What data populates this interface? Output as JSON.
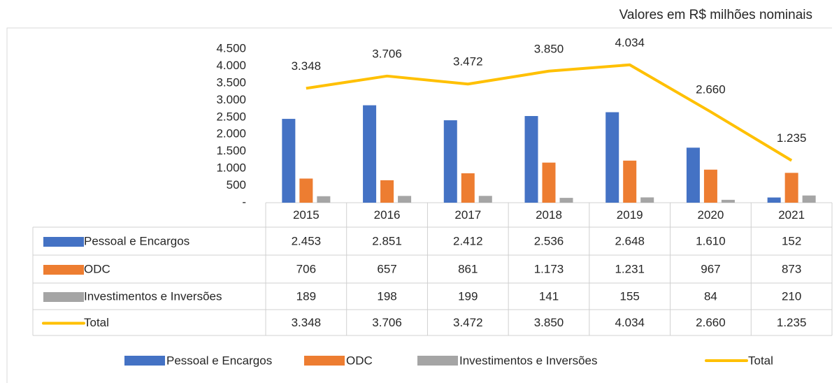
{
  "chart_data": {
    "type": "bar",
    "subtitle": "Valores em R$ milhões nominais",
    "categories": [
      "2015",
      "2016",
      "2017",
      "2018",
      "2019",
      "2020",
      "2021"
    ],
    "series": [
      {
        "name": "Pessoal e Encargos",
        "color": "#4472c4",
        "type": "bar",
        "values": [
          2453,
          2851,
          2412,
          2536,
          2648,
          1610,
          152
        ],
        "value_labels": [
          "2.453",
          "2.851",
          "2.412",
          "2.536",
          "2.648",
          "1.610",
          "152"
        ]
      },
      {
        "name": "ODC",
        "color": "#ed7d31",
        "type": "bar",
        "values": [
          706,
          657,
          861,
          1173,
          1231,
          967,
          873
        ],
        "value_labels": [
          "706",
          "657",
          "861",
          "1.173",
          "1.231",
          "967",
          "873"
        ]
      },
      {
        "name": "Investimentos e Inversões",
        "color": "#a5a5a5",
        "type": "bar",
        "values": [
          189,
          198,
          199,
          141,
          155,
          84,
          210
        ],
        "value_labels": [
          "189",
          "198",
          "199",
          "141",
          "155",
          "84",
          "210"
        ]
      },
      {
        "name": "Total",
        "color": "#ffc000",
        "type": "line",
        "values": [
          3348,
          3706,
          3472,
          3850,
          4034,
          2660,
          1235
        ],
        "value_labels": [
          "3.348",
          "3.706",
          "3.472",
          "3.850",
          "4.034",
          "2.660",
          "1.235"
        ]
      }
    ],
    "ylim": [
      0,
      4500
    ],
    "yticks": [
      {
        "value": 0,
        "label": "-"
      },
      500,
      {
        "value": 1000,
        "label": "1.000"
      },
      {
        "value": 1500,
        "label": "1.500"
      },
      {
        "value": 2000,
        "label": "2.000"
      },
      {
        "value": 2500,
        "label": "2.500"
      },
      {
        "value": 3000,
        "label": "3.000"
      },
      {
        "value": 3500,
        "label": "3.500"
      },
      {
        "value": 4000,
        "label": "4.000"
      },
      {
        "value": 4500,
        "label": "4.500"
      }
    ]
  }
}
